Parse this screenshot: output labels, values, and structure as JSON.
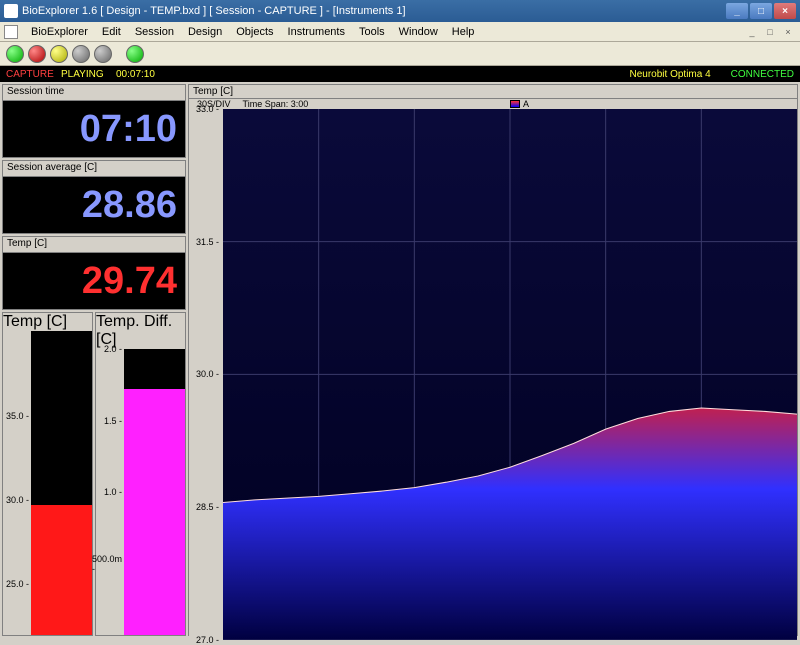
{
  "window": {
    "title": "BioExplorer 1.6  [ Design - TEMP.bxd ] [ Session - CAPTURE ] - [Instruments 1]"
  },
  "menu": {
    "items": [
      "BioExplorer",
      "Edit",
      "Session",
      "Design",
      "Objects",
      "Instruments",
      "Tools",
      "Window",
      "Help"
    ]
  },
  "toolbar": {
    "buttons": [
      {
        "name": "btn1",
        "color": "green"
      },
      {
        "name": "btn2",
        "color": "red"
      },
      {
        "name": "btn3",
        "color": "yellow"
      },
      {
        "name": "btn4",
        "color": "grey"
      },
      {
        "name": "btn5",
        "color": "grey"
      },
      {
        "name": "btn6",
        "color": "green"
      }
    ]
  },
  "status": {
    "capture": "CAPTURE",
    "playing": "PLAYING",
    "time": "00:07:10",
    "device": "Neurobit Optima 4",
    "connection": "CONNECTED"
  },
  "panels": {
    "session_time": {
      "title": "Session time",
      "value": "07:10",
      "color": "#8898ff",
      "bg": "#000"
    },
    "session_avg": {
      "title": "Session average [C]",
      "value": "28.86",
      "color": "#8898ff",
      "bg": "#000"
    },
    "temp": {
      "title": "Temp [C]",
      "value": "29.74",
      "color": "#ff3030",
      "bg": "#000"
    }
  },
  "bars": {
    "temp": {
      "title": "Temp [C]",
      "min": 22,
      "max": 40,
      "ticks": [
        "35.0",
        "30.0",
        "25.0"
      ],
      "tick_positions_pct": [
        27.8,
        55.6,
        83.3
      ],
      "value": 29.7,
      "fill_pct": 42.8,
      "fill_color": "#ff1818",
      "bg": "#000"
    },
    "diff": {
      "title": "Temp. Diff. [C]",
      "min": 0,
      "max": 2.0,
      "ticks": [
        "2.0",
        "1.5",
        "1.0",
        "500.0m"
      ],
      "tick_positions_pct": [
        0,
        25,
        50,
        75
      ],
      "value": 1.72,
      "fill_pct": 86,
      "fill_color": "#ff20ff",
      "bg": "#000"
    }
  },
  "chart": {
    "title": "Temp [C]",
    "time_div": "30S/DIV",
    "time_span": "Time Span: 3:00",
    "legend_label": "A",
    "ymin": 27.0,
    "ymax": 33.0,
    "yticks": [
      "33.0",
      "31.5",
      "30.0",
      "28.5",
      "27.0"
    ],
    "ytick_positions_pct": [
      0,
      25,
      50,
      75,
      100
    ],
    "xgrid_count": 6,
    "bg_top": "#0a0a3a",
    "bg_bottom": "#000020",
    "grid_color": "#3a3a6a",
    "series": {
      "color_top": "#c02050",
      "color_mid": "#3030ff",
      "color_bottom": "#000040",
      "points_y": [
        28.55,
        28.58,
        28.6,
        28.62,
        28.65,
        28.68,
        28.72,
        28.78,
        28.85,
        28.95,
        29.08,
        29.22,
        29.38,
        29.5,
        29.58,
        29.62,
        29.6,
        29.58,
        29.55
      ]
    }
  }
}
